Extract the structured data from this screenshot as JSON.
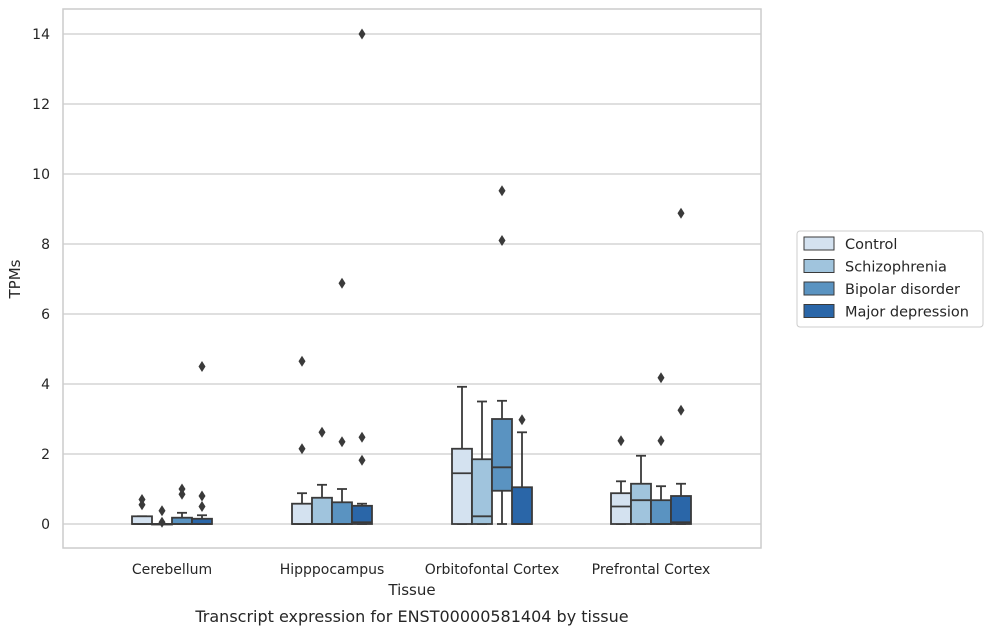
{
  "caption": "Transcript expression for ENST00000581404 by tissue",
  "chart_data": {
    "type": "box",
    "title": "",
    "xlabel": "Tissue",
    "ylabel": "TPMs",
    "ylim": [
      -0.7,
      14.7
    ],
    "yticks": [
      0,
      2,
      4,
      6,
      8,
      10,
      12,
      14
    ],
    "grid": "horizontal",
    "legend_position": "right",
    "categories": [
      "Cerebellum",
      "Hipppocampus",
      "Orbitofontal Cortex",
      "Prefrontal Cortex"
    ],
    "series": [
      {
        "name": "Control",
        "color": "#d4e2f0",
        "boxes": [
          {
            "whislo": 0,
            "q1": 0,
            "med": 0.0,
            "q3": 0.22,
            "whishi": 0.22,
            "fliers": [
              0.55,
              0.7
            ]
          },
          {
            "whislo": 0,
            "q1": 0,
            "med": 0.0,
            "q3": 0.58,
            "whishi": 0.88,
            "fliers": [
              2.15,
              4.65
            ]
          },
          {
            "whislo": 0,
            "q1": 0,
            "med": 1.45,
            "q3": 2.15,
            "whishi": 3.92,
            "fliers": []
          },
          {
            "whislo": 0,
            "q1": 0,
            "med": 0.5,
            "q3": 0.88,
            "whishi": 1.22,
            "fliers": [
              2.38
            ]
          }
        ]
      },
      {
        "name": "Schizophrenia",
        "color": "#a0c4dd",
        "boxes": [
          {
            "whislo": 0,
            "q1": 0,
            "med": 0.0,
            "q3": 0.0,
            "whishi": 0.0,
            "fliers": [
              0.05,
              0.38
            ]
          },
          {
            "whislo": 0,
            "q1": 0,
            "med": 0.0,
            "q3": 0.75,
            "whishi": 1.12,
            "fliers": [
              2.62
            ]
          },
          {
            "whislo": 0,
            "q1": 0,
            "med": 0.22,
            "q3": 1.85,
            "whishi": 3.5,
            "fliers": []
          },
          {
            "whislo": 0,
            "q1": 0,
            "med": 0.68,
            "q3": 1.15,
            "whishi": 1.95,
            "fliers": []
          }
        ]
      },
      {
        "name": "Bipolar disorder",
        "color": "#5a93c1",
        "boxes": [
          {
            "whislo": 0,
            "q1": 0,
            "med": 0.0,
            "q3": 0.18,
            "whishi": 0.32,
            "fliers": [
              0.85,
              1.0
            ]
          },
          {
            "whislo": 0,
            "q1": 0,
            "med": 0.0,
            "q3": 0.62,
            "whishi": 1.0,
            "fliers": [
              2.35,
              6.88
            ]
          },
          {
            "whislo": 0,
            "q1": 0.95,
            "med": 1.62,
            "q3": 3.0,
            "whishi": 3.52,
            "fliers": [
              8.1,
              9.52
            ]
          },
          {
            "whislo": 0,
            "q1": 0,
            "med": 0.0,
            "q3": 0.68,
            "whishi": 1.08,
            "fliers": [
              2.38,
              4.18
            ]
          }
        ]
      },
      {
        "name": "Major depression",
        "color": "#2a66a8",
        "boxes": [
          {
            "whislo": 0,
            "q1": 0,
            "med": 0.0,
            "q3": 0.15,
            "whishi": 0.25,
            "fliers": [
              0.5,
              0.8,
              4.5
            ]
          },
          {
            "whislo": 0,
            "q1": 0,
            "med": 0.05,
            "q3": 0.52,
            "whishi": 0.58,
            "fliers": [
              1.82,
              2.48,
              14.0
            ]
          },
          {
            "whislo": 0,
            "q1": 0,
            "med": 0.0,
            "q3": 1.05,
            "whishi": 2.62,
            "fliers": [
              2.98
            ]
          },
          {
            "whislo": 0,
            "q1": 0,
            "med": 0.05,
            "q3": 0.8,
            "whishi": 1.15,
            "fliers": [
              3.25,
              8.88
            ]
          }
        ]
      }
    ]
  }
}
